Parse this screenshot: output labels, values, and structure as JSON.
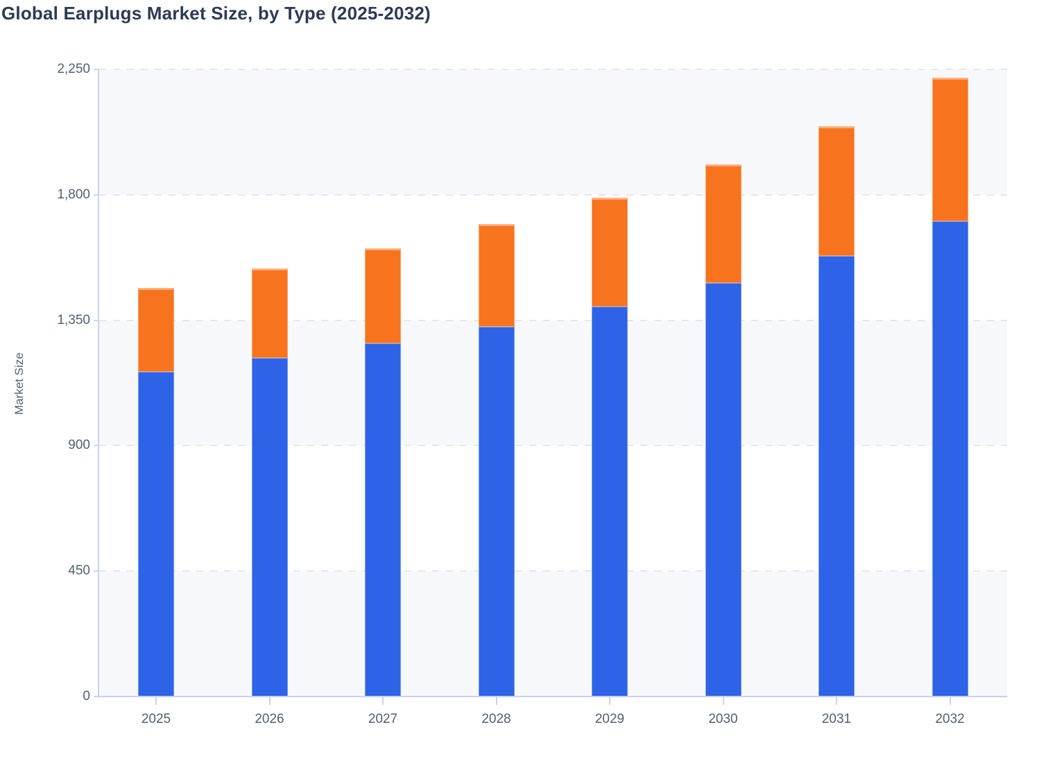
{
  "chart_data": {
    "type": "bar",
    "stacked": true,
    "title": "Global Earplugs Market Size, by Type (2025-2032)",
    "xlabel": "",
    "ylabel": "Market Size",
    "categories": [
      "2025",
      "2026",
      "2027",
      "2028",
      "2029",
      "2030",
      "2031",
      "2032"
    ],
    "series": [
      {
        "name": "blue-series",
        "color": "#2e63e7",
        "values": [
          1165,
          1215,
          1267,
          1327,
          1398,
          1483,
          1580,
          1704
        ]
      },
      {
        "name": "orange-series",
        "color": "#f8731d",
        "values": [
          300,
          320,
          340,
          367,
          392,
          425,
          466,
          516
        ]
      }
    ],
    "totals": [
      1465,
      1535,
      1607,
      1694,
      1790,
      1908,
      2046,
      2220
    ],
    "ylim": [
      0,
      2250
    ],
    "yticks": [
      0,
      450,
      900,
      1350,
      1800,
      2250
    ],
    "ytick_labels": [
      "0",
      "450",
      "900",
      "1,350",
      "1,800",
      "2,250"
    ],
    "grid": "dashed horizontal gridlines with alternating shaded bands",
    "legend": "none"
  },
  "colors": {
    "title_text": "#2b3b54",
    "axis_text": "#4f6071",
    "axis_line": "#c9d2ef",
    "grid_dash": "#e4e7ec",
    "band_fill": "#f7f8fb",
    "background": "#ffffff"
  }
}
